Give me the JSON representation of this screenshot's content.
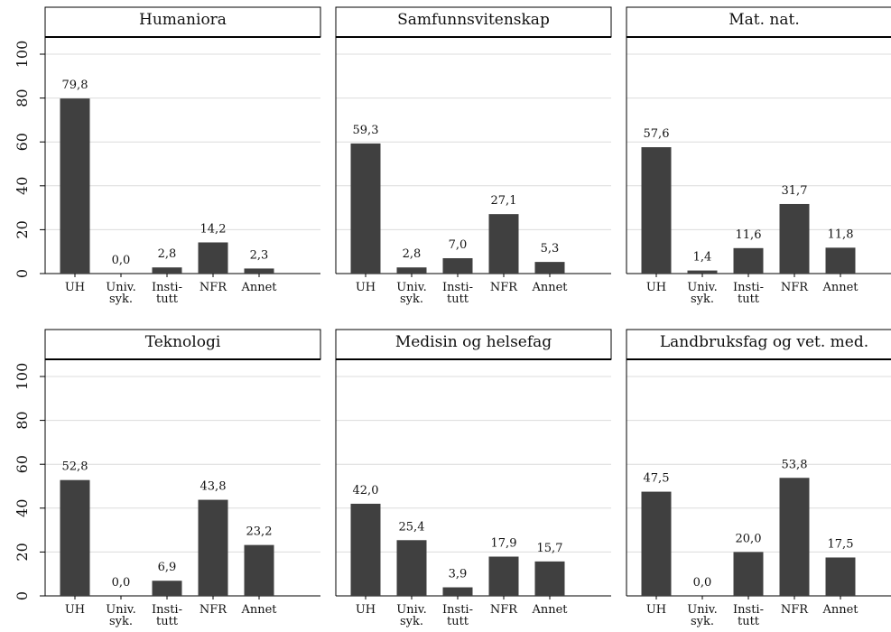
{
  "chart_data": [
    {
      "type": "bar",
      "title": "Humaniora",
      "categories": [
        "UH",
        "Univ. syk.",
        "Insti- tutt",
        "NFR",
        "Annet"
      ],
      "values": [
        79.8,
        0.0,
        2.8,
        14.2,
        2.3
      ],
      "value_labels": [
        "79,8",
        "0,0",
        "2,8",
        "14,2",
        "2,3"
      ],
      "ylim": [
        0,
        100
      ]
    },
    {
      "type": "bar",
      "title": "Samfunnsvitenskap",
      "categories": [
        "UH",
        "Univ. syk.",
        "Insti- tutt",
        "NFR",
        "Annet"
      ],
      "values": [
        59.3,
        2.8,
        7.0,
        27.1,
        5.3
      ],
      "value_labels": [
        "59,3",
        "2,8",
        "7,0",
        "27,1",
        "5,3"
      ],
      "ylim": [
        0,
        100
      ]
    },
    {
      "type": "bar",
      "title": "Mat. nat.",
      "categories": [
        "UH",
        "Univ. syk.",
        "Insti- tutt",
        "NFR",
        "Annet"
      ],
      "values": [
        57.6,
        1.4,
        11.6,
        31.7,
        11.8
      ],
      "value_labels": [
        "57,6",
        "1,4",
        "11,6",
        "31,7",
        "11,8"
      ],
      "ylim": [
        0,
        100
      ]
    },
    {
      "type": "bar",
      "title": "Teknologi",
      "categories": [
        "UH",
        "Univ. syk.",
        "Insti- tutt",
        "NFR",
        "Annet"
      ],
      "values": [
        52.8,
        0.0,
        6.9,
        43.8,
        23.2
      ],
      "value_labels": [
        "52,8",
        "0,0",
        "6,9",
        "43,8",
        "23,2"
      ],
      "ylim": [
        0,
        100
      ]
    },
    {
      "type": "bar",
      "title": "Medisin og helsefag",
      "categories": [
        "UH",
        "Univ. syk.",
        "Insti- tutt",
        "NFR",
        "Annet"
      ],
      "values": [
        42.0,
        25.4,
        3.9,
        17.9,
        15.7
      ],
      "value_labels": [
        "42,0",
        "25,4",
        "3,9",
        "17,9",
        "15,7"
      ],
      "ylim": [
        0,
        100
      ]
    },
    {
      "type": "bar",
      "title": "Landbruksfag og vet. med.",
      "categories": [
        "UH",
        "Univ. syk.",
        "Insti- tutt",
        "NFR",
        "Annet"
      ],
      "values": [
        47.5,
        0.0,
        20.0,
        53.8,
        17.5
      ],
      "value_labels": [
        "47,5",
        "0,0",
        "20,0",
        "53,8",
        "17,5"
      ],
      "ylim": [
        0,
        100
      ]
    }
  ],
  "y_ticks": [
    "0",
    "20",
    "40",
    "60",
    "80",
    "100"
  ],
  "bar_color": "#404040",
  "grid_color": "#dcdcdc"
}
